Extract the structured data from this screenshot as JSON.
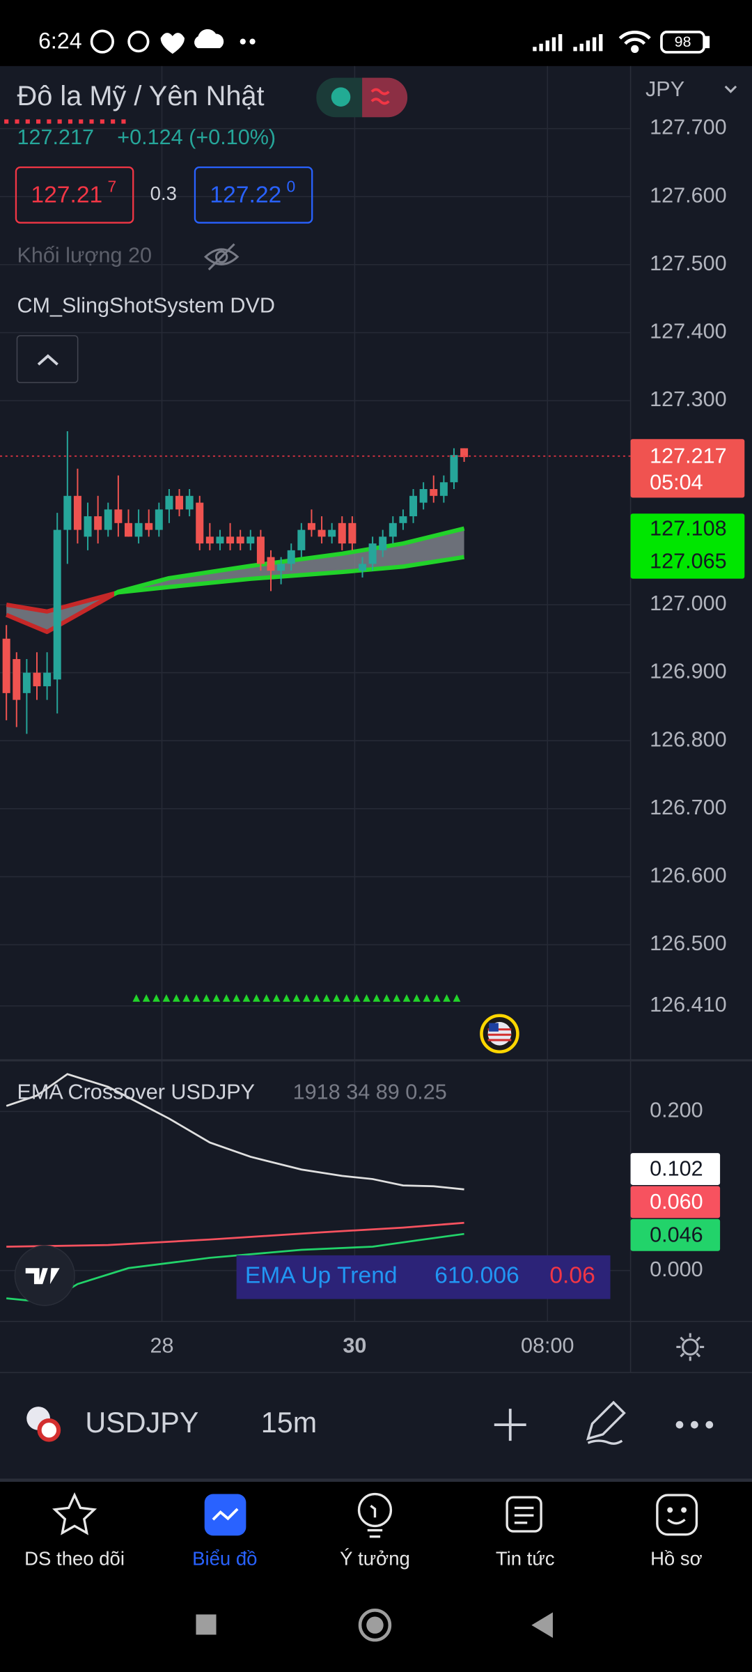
{
  "status_bar": {
    "time": "6:24",
    "battery": "98"
  },
  "header": {
    "title": "Đô la Mỹ / Yên Nhật",
    "currency": "JPY"
  },
  "quote": {
    "price": "127.217",
    "change": "+0.124 (+0.10%)",
    "sell": "127.21",
    "sell_pip": "7",
    "spread": "0.3",
    "buy": "127.22",
    "buy_pip": "0"
  },
  "indicators": {
    "volume": "Khối lượng 20",
    "slingshot": "CM_SlingShotSystem DVD"
  },
  "price_axis": {
    "ylim": [
      126.33,
      127.792
    ],
    "ticks": [
      {
        "value": 127.7,
        "label": "127.700"
      },
      {
        "value": 127.6,
        "label": "127.600"
      },
      {
        "value": 127.5,
        "label": "127.500"
      },
      {
        "value": 127.4,
        "label": "127.400"
      },
      {
        "value": 127.3,
        "label": "127.300"
      },
      {
        "value": 127.0,
        "label": "127.000"
      },
      {
        "value": 126.9,
        "label": "126.900"
      },
      {
        "value": 126.8,
        "label": "126.800"
      },
      {
        "value": 126.7,
        "label": "126.700"
      },
      {
        "value": 126.6,
        "label": "126.600"
      },
      {
        "value": 126.5,
        "label": "126.500"
      },
      {
        "value": 126.41,
        "label": "126.410"
      }
    ],
    "last_price": "127.217",
    "countdown": "05:04",
    "ema_fast_label": "127.108",
    "ema_slow_label": "127.065"
  },
  "candles": [
    [
      126.95,
      126.97,
      126.83,
      126.87
    ],
    [
      126.92,
      126.93,
      126.82,
      126.86
    ],
    [
      126.87,
      126.92,
      126.81,
      126.9
    ],
    [
      126.9,
      126.93,
      126.86,
      126.88
    ],
    [
      126.88,
      126.93,
      126.86,
      126.9
    ],
    [
      126.89,
      127.135,
      126.84,
      127.11
    ],
    [
      127.11,
      127.255,
      127.06,
      127.16
    ],
    [
      127.16,
      127.2,
      127.09,
      127.11
    ],
    [
      127.1,
      127.15,
      127.08,
      127.13
    ],
    [
      127.13,
      127.16,
      127.09,
      127.11
    ],
    [
      127.11,
      127.15,
      127.1,
      127.14
    ],
    [
      127.14,
      127.19,
      127.1,
      127.12
    ],
    [
      127.12,
      127.14,
      127.1,
      127.1
    ],
    [
      127.1,
      127.14,
      127.09,
      127.12
    ],
    [
      127.12,
      127.14,
      127.1,
      127.11
    ],
    [
      127.11,
      127.15,
      127.1,
      127.14
    ],
    [
      127.14,
      127.17,
      127.12,
      127.16
    ],
    [
      127.16,
      127.17,
      127.13,
      127.14
    ],
    [
      127.14,
      127.17,
      127.13,
      127.16
    ],
    [
      127.15,
      127.16,
      127.08,
      127.09
    ],
    [
      127.1,
      127.12,
      127.08,
      127.09
    ],
    [
      127.09,
      127.11,
      127.08,
      127.1
    ],
    [
      127.1,
      127.12,
      127.08,
      127.09
    ],
    [
      127.1,
      127.11,
      127.08,
      127.09
    ],
    [
      127.09,
      127.11,
      127.08,
      127.1
    ],
    [
      127.1,
      127.11,
      127.05,
      127.06
    ],
    [
      127.07,
      127.08,
      127.02,
      127.05
    ],
    [
      127.05,
      127.07,
      127.03,
      127.06
    ],
    [
      127.06,
      127.09,
      127.05,
      127.08
    ],
    [
      127.08,
      127.12,
      127.07,
      127.11
    ],
    [
      127.12,
      127.14,
      127.1,
      127.11
    ],
    [
      127.11,
      127.13,
      127.09,
      127.1
    ],
    [
      127.1,
      127.12,
      127.09,
      127.11
    ],
    [
      127.12,
      127.13,
      127.08,
      127.09
    ],
    [
      127.12,
      127.13,
      127.08,
      127.09
    ],
    [
      127.05,
      127.07,
      127.04,
      127.06
    ],
    [
      127.06,
      127.1,
      127.05,
      127.09
    ],
    [
      127.08,
      127.11,
      127.07,
      127.1
    ],
    [
      127.1,
      127.13,
      127.09,
      127.12
    ],
    [
      127.12,
      127.14,
      127.11,
      127.13
    ],
    [
      127.13,
      127.17,
      127.12,
      127.16
    ],
    [
      127.15,
      127.18,
      127.14,
      127.17
    ],
    [
      127.17,
      127.19,
      127.15,
      127.16
    ],
    [
      127.16,
      127.19,
      127.15,
      127.18
    ],
    [
      127.18,
      127.23,
      127.17,
      127.22
    ],
    [
      127.23,
      127.23,
      127.21,
      127.217
    ]
  ],
  "ema_band": {
    "x": [
      0,
      4,
      11,
      16,
      24,
      33,
      39,
      45
    ],
    "fast": [
      126.985,
      126.96,
      127.019,
      127.039,
      127.057,
      127.075,
      127.09,
      127.112
    ],
    "slow": [
      127.0,
      126.99,
      127.018,
      127.026,
      127.038,
      127.048,
      127.056,
      127.07
    ]
  },
  "oscillator": {
    "title": "EMA Crossover USDJPY",
    "params": "1918 34 89 0.25",
    "ylim": [
      -0.064,
      0.263
    ],
    "ticks": [
      {
        "value": 0.2,
        "label": "0.200"
      },
      {
        "value": 0,
        "label": "0.000"
      }
    ],
    "series": [
      {
        "color": "#e0e0e0",
        "x": [
          0,
          3,
          6,
          10,
          13,
          16,
          20,
          24,
          29,
          33,
          36,
          39,
          42,
          45
        ],
        "values": [
          0.207,
          0.22,
          0.247,
          0.231,
          0.211,
          0.191,
          0.161,
          0.143,
          0.127,
          0.119,
          0.115,
          0.107,
          0.106,
          0.102
        ],
        "label": "0.102"
      },
      {
        "color": "#f7525f",
        "x": [
          0,
          10,
          20,
          31,
          39,
          45
        ],
        "values": [
          0.03,
          0.032,
          0.039,
          0.048,
          0.054,
          0.06
        ],
        "label": "0.060"
      },
      {
        "color": "#22d36a",
        "x": [
          0,
          4,
          7,
          12,
          20,
          29,
          36,
          41,
          45
        ],
        "values": [
          -0.035,
          -0.04,
          -0.017,
          0.003,
          0.016,
          0.026,
          0.03,
          0.039,
          0.046
        ],
        "label": "0.046"
      }
    ],
    "banner": {
      "text": "EMA Up Trend",
      "value": "610.006",
      "delta": "0.06"
    }
  },
  "time_axis": [
    "28",
    "30",
    "08:00"
  ],
  "toolbar": {
    "symbol": "USDJPY",
    "interval": "15m"
  },
  "nav": [
    "DS theo dõi",
    "Biểu đồ",
    "Ý tưởng",
    "Tin tức",
    "Hồ sơ"
  ]
}
